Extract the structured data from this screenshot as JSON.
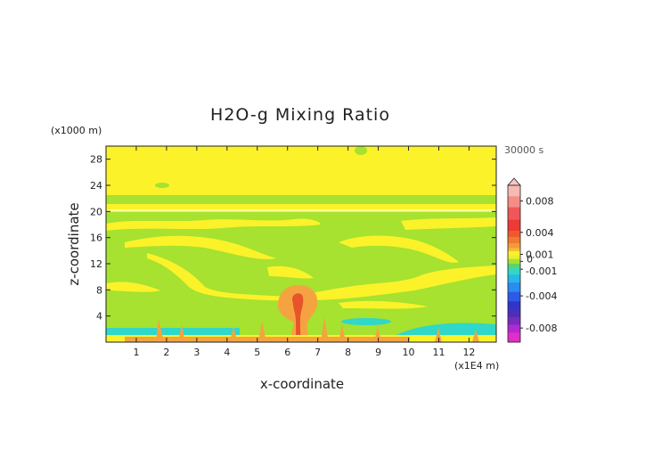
{
  "chart_data": {
    "type": "heatmap",
    "title": "H2O-g Mixing Ratio",
    "time_label": "30000 s",
    "xlabel": "x-coordinate",
    "ylabel": "z-coordinate",
    "x_unit": "(x1E4 m)",
    "y_unit": "(x1000 m)",
    "xlim": [
      0,
      12.9
    ],
    "ylim": [
      0,
      30
    ],
    "x_ticks": [
      1,
      2,
      3,
      4,
      5,
      6,
      7,
      8,
      9,
      10,
      11,
      12
    ],
    "y_ticks": [
      4,
      8,
      12,
      16,
      20,
      24,
      28
    ],
    "colorbar_labels": [
      "0.008",
      "0.004",
      "0.001",
      "0",
      "-0.001",
      "-0.004",
      "-0.008"
    ],
    "colorbar_values": [
      0.008,
      0.004,
      0.001,
      0,
      -0.001,
      -0.004,
      -0.008
    ],
    "colorbar_range": [
      -0.01,
      0.01
    ],
    "background_colors": {
      "near_zero": "#a6e22f",
      "slightly_positive": "#fbf22a",
      "positive_orange": "#f5a341",
      "positive_red": "#e8532a",
      "negative_cyan": "#2fd8c8"
    },
    "regions": [
      {
        "kind": "band",
        "z_range": [
          0,
          20.3
        ],
        "value": 0.0
      },
      {
        "kind": "band",
        "z_range": [
          20.3,
          21.3
        ],
        "value": 0.0004
      },
      {
        "kind": "band",
        "z_range": [
          21.3,
          22.5
        ],
        "value": 0.0
      },
      {
        "kind": "band",
        "z_range": [
          22.5,
          30
        ],
        "value": 0.0004
      },
      {
        "kind": "plume",
        "x_center": 6.2,
        "z_center": 6.5,
        "value": 0.004
      },
      {
        "kind": "surface",
        "z_range": [
          0,
          2
        ],
        "value": -0.0005
      }
    ]
  }
}
